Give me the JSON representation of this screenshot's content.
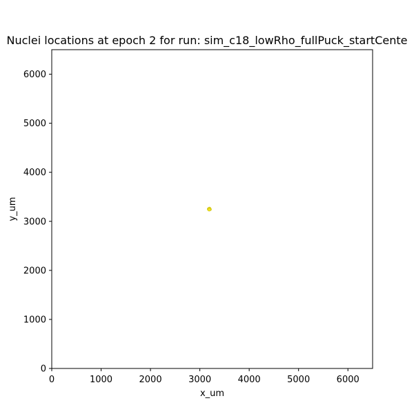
{
  "chart_data": {
    "type": "scatter",
    "title": "Nuclei locations at epoch 2 for run: sim_c18_lowRho_fullPuck_startCente",
    "xlabel": "x_um",
    "ylabel": "y_um",
    "xlim": [
      0,
      6500
    ],
    "ylim": [
      0,
      6500
    ],
    "x_ticks": [
      0,
      1000,
      2000,
      3000,
      4000,
      5000,
      6000
    ],
    "y_ticks": [
      0,
      1000,
      2000,
      3000,
      4000,
      5000,
      6000
    ],
    "grid": false,
    "points": [
      {
        "x": 3180,
        "y": 3250
      },
      {
        "x": 3195,
        "y": 3260
      },
      {
        "x": 3205,
        "y": 3245
      },
      {
        "x": 3190,
        "y": 3238
      }
    ],
    "point_color": "#f2e51f",
    "point_edge_color": "#c9bd10"
  }
}
